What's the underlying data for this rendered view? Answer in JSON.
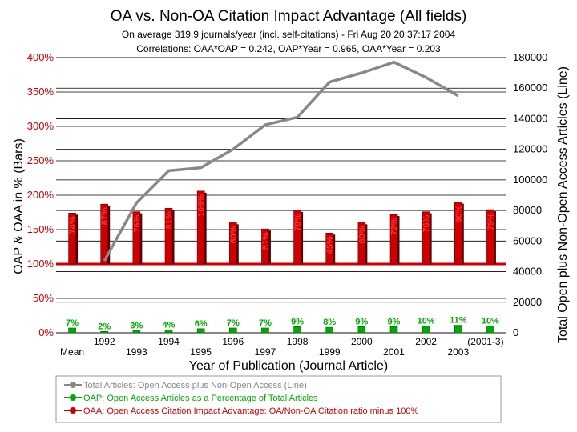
{
  "title": "OA vs. Non-OA Citation Impact Advantage (All fields)",
  "subtitle1": "On average 319.9 journals/year (incl. self-citations) - Fri Aug 20 20:37:17 2004",
  "subtitle2": "Correlations:  OAA*OAP = 0.242,  OAP*Year = 0.965,  OAA*Year = 0.203",
  "colors": {
    "oaa": "#cc0000",
    "oap": "#00aa00",
    "total": "#888888",
    "base": "#cc0000"
  },
  "chart_data": {
    "type": "bar",
    "title": "OA vs. Non-OA Citation Impact Advantage (All fields)",
    "xlabel": "Year of Publication (Journal Article)",
    "ylabel": "OAP & OAA in % (Bars)",
    "y2label": "Total Open plus Non-Open Access Articles (Line)",
    "categories": [
      "Mean",
      "1992",
      "1993",
      "1994",
      "1995",
      "1996",
      "1997",
      "1998",
      "1999",
      "2000",
      "2001",
      "2002",
      "2003",
      "(2001-3)"
    ],
    "ylim": [
      0,
      400
    ],
    "y2lim": [
      0,
      180000
    ],
    "left_ticks": [
      "0%",
      "50%",
      "100%",
      "150%",
      "200%",
      "250%",
      "300%",
      "350%",
      "400%"
    ],
    "right_ticks": [
      "0",
      "20000",
      "40000",
      "60000",
      "80000",
      "100000",
      "120000",
      "140000",
      "160000",
      "180000"
    ],
    "series": [
      {
        "name": "OAA",
        "kind": "bar",
        "values": [
          74,
          87,
          76,
          81,
          106,
          60,
          51,
          78,
          45,
          60,
          72,
          76,
          90,
          79
        ],
        "labels": [
          "74%",
          "87%",
          "76%",
          "81%",
          "106%",
          "60%",
          "51%",
          "78%",
          "45%",
          "60%",
          "72%",
          "76%",
          "90%",
          "79%"
        ]
      },
      {
        "name": "OAP",
        "kind": "bar",
        "values": [
          7,
          2,
          3,
          4,
          6,
          7,
          7,
          9,
          8,
          9,
          9,
          10,
          11,
          10
        ],
        "labels": [
          "7%",
          "2%",
          "3%",
          "4%",
          "6%",
          "7%",
          "7%",
          "9%",
          "8%",
          "9%",
          "9%",
          "10%",
          "11%",
          "10%"
        ]
      },
      {
        "name": "Total Articles",
        "kind": "line",
        "axis": "right",
        "x": [
          "1992",
          "1993",
          "1994",
          "1995",
          "1996",
          "1997",
          "1998",
          "1999",
          "2000",
          "2001",
          "2002",
          "2003"
        ],
        "values": [
          47000,
          85000,
          106000,
          108000,
          120000,
          136000,
          141000,
          164000,
          170000,
          177000,
          167000,
          155000
        ]
      }
    ],
    "legend": [
      "Total Articles: Open Access plus Non-Open Access (Line)",
      "OAP: Open Access Articles as a Percentage of Total Articles",
      "OAA: Open Access Citation Impact Advantage: OA/Non-OA Citation ratio minus 100%"
    ]
  }
}
